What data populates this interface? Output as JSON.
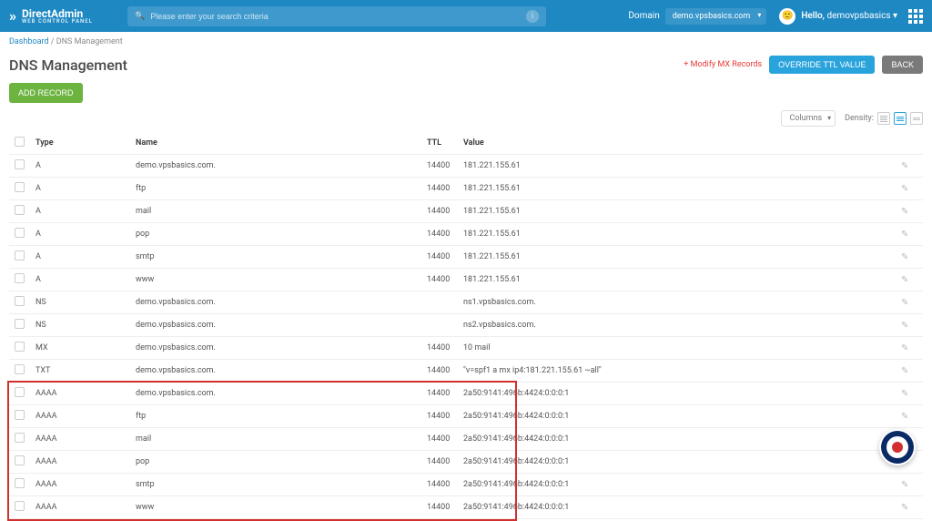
{
  "colors": {
    "topbar": "#1e88c3",
    "accent": "#29a3dc",
    "green": "#6cb33f",
    "grey": "#7a7a7a",
    "danger": "#e53935",
    "highlight": "#d32f2f"
  },
  "header": {
    "logo_main": "DirectAdmin",
    "logo_sub": "WEB CONTROL PANEL",
    "search_placeholder": "Please enter your search criteria",
    "domain_label": "Domain",
    "domain_value": "demo.vpsbasics.com",
    "hello_prefix": "Hello, ",
    "hello_user": "demovpsbasics"
  },
  "breadcrumb": {
    "root": "Dashboard",
    "sep": " / ",
    "current": "DNS Management"
  },
  "page": {
    "title": "DNS Management"
  },
  "actions": {
    "modify_mx": "+ Modify MX Records",
    "override_ttl": "OVERRIDE TTL VALUE",
    "back": "BACK",
    "add_record": "ADD RECORD",
    "columns": "Columns",
    "density": "Density:"
  },
  "table": {
    "headers": {
      "type": "Type",
      "name": "Name",
      "ttl": "TTL",
      "value": "Value"
    },
    "rows": [
      {
        "type": "A",
        "name": "demo.vpsbasics.com.",
        "ttl": "14400",
        "value": "181.221.155.61",
        "hl": false
      },
      {
        "type": "A",
        "name": "ftp",
        "ttl": "14400",
        "value": "181.221.155.61",
        "hl": false
      },
      {
        "type": "A",
        "name": "mail",
        "ttl": "14400",
        "value": "181.221.155.61",
        "hl": false
      },
      {
        "type": "A",
        "name": "pop",
        "ttl": "14400",
        "value": "181.221.155.61",
        "hl": false
      },
      {
        "type": "A",
        "name": "smtp",
        "ttl": "14400",
        "value": "181.221.155.61",
        "hl": false
      },
      {
        "type": "A",
        "name": "www",
        "ttl": "14400",
        "value": "181.221.155.61",
        "hl": false
      },
      {
        "type": "NS",
        "name": "demo.vpsbasics.com.",
        "ttl": "",
        "value": "ns1.vpsbasics.com.",
        "hl": false
      },
      {
        "type": "NS",
        "name": "demo.vpsbasics.com.",
        "ttl": "",
        "value": "ns2.vpsbasics.com.",
        "hl": false
      },
      {
        "type": "MX",
        "name": "demo.vpsbasics.com.",
        "ttl": "14400",
        "value": "10 mail",
        "hl": false
      },
      {
        "type": "TXT",
        "name": "demo.vpsbasics.com.",
        "ttl": "14400",
        "value": "\"v=spf1 a mx ip4:181.221.155.61 ~all\"",
        "hl": false
      },
      {
        "type": "AAAA",
        "name": "demo.vpsbasics.com.",
        "ttl": "14400",
        "value": "2a50:9141:496b:4424:0:0:0:1",
        "hl": true
      },
      {
        "type": "AAAA",
        "name": "ftp",
        "ttl": "14400",
        "value": "2a50:9141:496b:4424:0:0:0:1",
        "hl": true
      },
      {
        "type": "AAAA",
        "name": "mail",
        "ttl": "14400",
        "value": "2a50:9141:496b:4424:0:0:0:1",
        "hl": true
      },
      {
        "type": "AAAA",
        "name": "pop",
        "ttl": "14400",
        "value": "2a50:9141:496b:4424:0:0:0:1",
        "hl": true
      },
      {
        "type": "AAAA",
        "name": "smtp",
        "ttl": "14400",
        "value": "2a50:9141:496b:4424:0:0:0:1",
        "hl": true
      },
      {
        "type": "AAAA",
        "name": "www",
        "ttl": "14400",
        "value": "2a50:9141:496b:4424:0:0:0:1",
        "hl": true
      }
    ]
  }
}
